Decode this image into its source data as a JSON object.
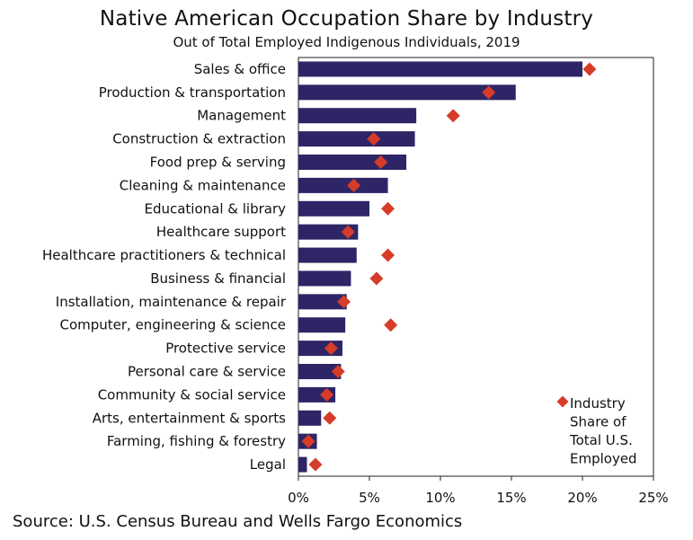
{
  "chart_data": {
    "type": "bar",
    "orientation": "horizontal",
    "title": "Native American Occupation Share by Industry",
    "subtitle": "Out of Total Employed Indigenous Individuals, 2019",
    "categories": [
      "Sales & office",
      "Production & transportation",
      "Management",
      "Construction & extraction",
      "Food prep & serving",
      "Cleaning & maintenance",
      "Educational & library",
      "Healthcare support",
      "Healthcare practitioners & technical",
      "Business & financial",
      "Installation, maintenance & repair",
      "Computer, engineering & science",
      "Protective service",
      "Personal care & service",
      "Community & social service",
      "Arts, entertainment & sports",
      "Farming, fishing & forestry",
      "Legal"
    ],
    "series": [
      {
        "name": "Native American Share",
        "kind": "bar",
        "color": "#2e2566",
        "values": [
          20.0,
          15.3,
          8.3,
          8.2,
          7.6,
          6.3,
          5.0,
          4.2,
          4.1,
          3.7,
          3.4,
          3.3,
          3.1,
          3.0,
          2.6,
          1.6,
          1.3,
          0.6
        ]
      },
      {
        "name": "Industry Share of Total U.S. Employed",
        "kind": "marker",
        "color": "#d63c29",
        "values": [
          20.5,
          13.4,
          10.9,
          5.3,
          5.8,
          3.9,
          6.3,
          3.5,
          6.3,
          5.5,
          3.2,
          6.5,
          2.3,
          2.8,
          2.0,
          2.2,
          0.7,
          1.2
        ]
      }
    ],
    "xlim": [
      0,
      25
    ],
    "xticks": [
      "0%",
      "5%",
      "10%",
      "15%",
      "20%",
      "25%"
    ],
    "xtick_values": [
      0,
      5,
      10,
      15,
      20,
      25
    ],
    "legend": {
      "placement": "bottom-right",
      "lines": [
        "Industry",
        "Share of",
        "Total U.S.",
        "Employed"
      ]
    },
    "grid": false
  },
  "source": "Source: U.S. Census Bureau and Wells Fargo Economics"
}
